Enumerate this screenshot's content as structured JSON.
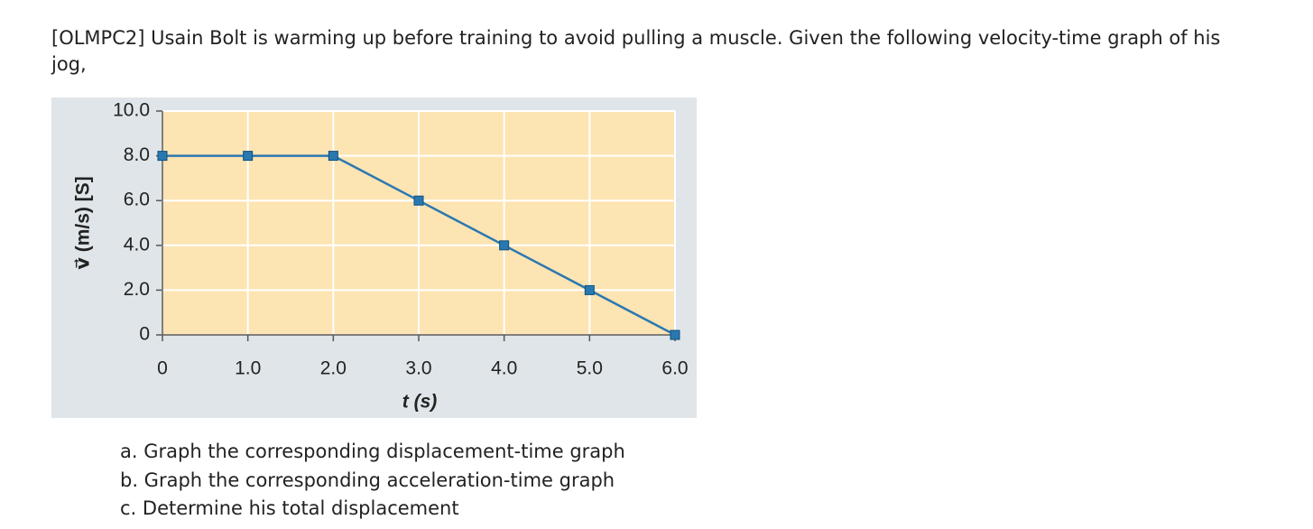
{
  "question": "[OLMPC2] Usain Bolt is warming up before training to avoid pulling a muscle. Given the following velocity-time graph of his jog,",
  "chart_data": {
    "type": "line",
    "x": [
      0,
      1,
      2,
      3,
      4,
      5,
      6
    ],
    "values": [
      8,
      8,
      8,
      6,
      4,
      2,
      0
    ],
    "color": "#2a78b0",
    "xlim": [
      0,
      6
    ],
    "ylim": [
      0,
      10
    ],
    "xticks": [
      0,
      {
        "value": 1,
        "label": "1.0"
      },
      {
        "value": 2,
        "label": "2.0"
      },
      {
        "value": 3,
        "label": "3.0"
      },
      {
        "value": 4,
        "label": "4.0"
      },
      {
        "value": 5,
        "label": "5.0"
      },
      {
        "value": 6,
        "label": "6.0"
      }
    ],
    "yticks": [
      0,
      {
        "value": 2,
        "label": "2.0"
      },
      {
        "value": 4,
        "label": "4.0"
      },
      {
        "value": 6,
        "label": "6.0"
      },
      {
        "value": 8,
        "label": "8.0"
      },
      {
        "value": 10,
        "label": "10.0"
      }
    ],
    "xlabel": "t (s)",
    "ylabel": "v⃗ (m/s) [S]",
    "grid": true
  },
  "parts": [
    "a. Graph the corresponding displacement-time graph",
    "b. Graph the corresponding acceleration-time graph",
    "c. Determine his total displacement"
  ]
}
